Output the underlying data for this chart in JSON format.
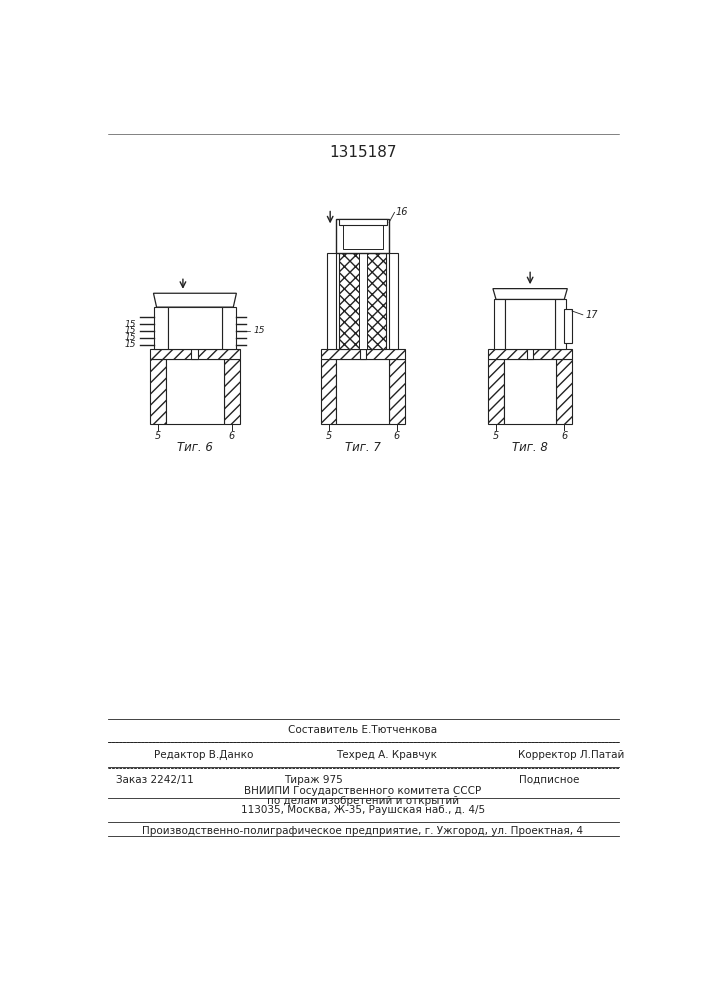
{
  "title": "1315187",
  "fig6_label": "Τиг. 6",
  "fig7_label": "Τиг. 7",
  "fig8_label": "Τиг. 8",
  "lc": "#222222",
  "footer_line1": "Составитель Е.Тютченкова",
  "footer_left2": "Редактор В.Данко",
  "footer_mid2": "Техред А. Кравчук",
  "footer_right2": "Корректор Л.Патай",
  "footer_left3": "Заказ 2242/11",
  "footer_mid3": "Тираж 975",
  "footer_right3": "Подписное",
  "footer_line4": "ВНИИПИ Государственного комитета СССР",
  "footer_line5": "по делам изобретений и открытий",
  "footer_line6": "113035, Москва, Ж-35, Раушская наб., д. 4/5",
  "footer_bottom": "Производственно-полиграфическое предприятие, г. Ужгород, ул. Проектная, 4"
}
